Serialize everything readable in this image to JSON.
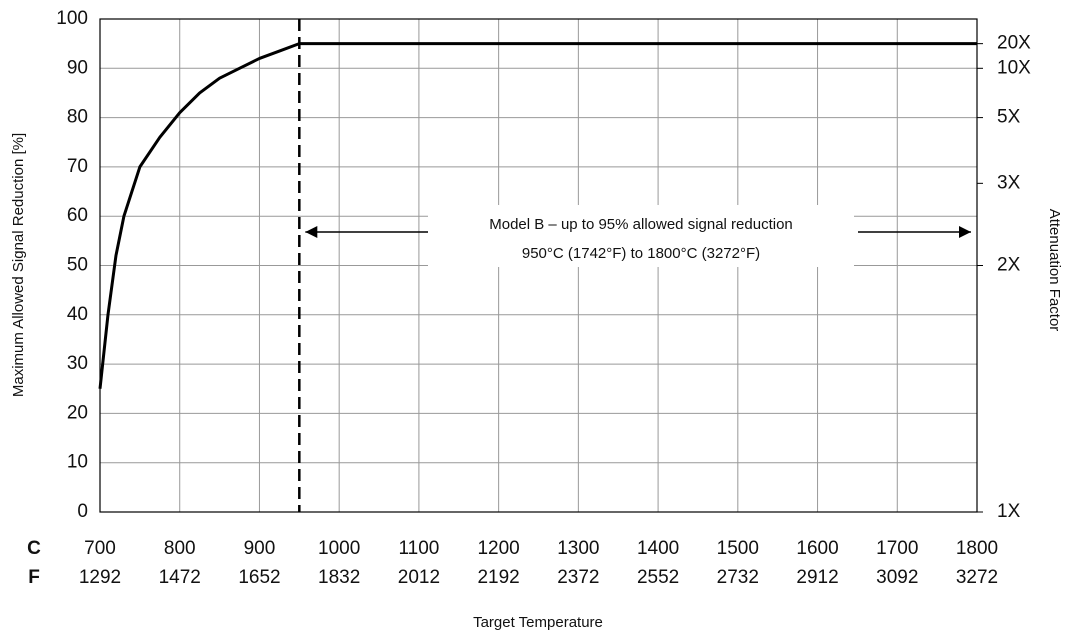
{
  "chart_data": {
    "type": "line",
    "y_label": "Maximum Allowed Signal Reduction [%]",
    "y2_label": "Attenuation Factor",
    "x_label": "Target Temperature",
    "x_unit_labels": [
      "C",
      "F"
    ],
    "x": [
      700,
      710,
      720,
      730,
      750,
      775,
      800,
      825,
      850,
      875,
      900,
      925,
      950,
      1800
    ],
    "values": [
      25,
      40,
      52,
      60,
      70,
      76,
      81,
      85,
      88,
      90,
      92,
      93.5,
      95,
      95
    ],
    "color": "#000000",
    "xlim": [
      700,
      1800
    ],
    "xticks": [
      700,
      800,
      900,
      1000,
      1100,
      1200,
      1300,
      1400,
      1500,
      1600,
      1700,
      1800
    ],
    "xticks_f": [
      1292,
      1472,
      1652,
      1832,
      2012,
      2192,
      2372,
      2552,
      2732,
      2912,
      3092,
      3272
    ],
    "ylim": [
      0,
      100
    ],
    "yticks": [
      0,
      10,
      20,
      30,
      40,
      50,
      60,
      70,
      80,
      90,
      100
    ],
    "y2scale": "reciprocal",
    "y2ticks": [
      {
        "value": 1,
        "label": "1X"
      },
      {
        "value": 2,
        "label": "2X"
      },
      {
        "value": 3,
        "label": "3X"
      },
      {
        "value": 5,
        "label": "5X"
      },
      {
        "value": 10,
        "label": "10X"
      },
      {
        "value": 20,
        "label": "20X"
      }
    ],
    "grid": true,
    "vline": 950,
    "span": [
      950,
      1800
    ],
    "annotations": [
      "Model B – up to 95% allowed signal reduction",
      "950°C (1742°F) to 1800°C (3272°F)"
    ]
  }
}
